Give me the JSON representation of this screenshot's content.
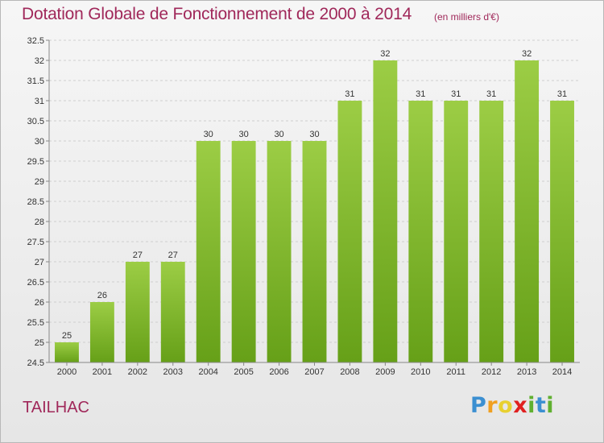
{
  "header": {
    "title": "Dotation Globale de Fonctionnement de 2000 à 2014",
    "unit": "(en milliers d'€)"
  },
  "footer": {
    "commune": "TAILHAC",
    "logo_letters": [
      "P",
      "r",
      "o",
      "x",
      "i",
      "t",
      "i"
    ]
  },
  "colors": {
    "title": "#a0285a",
    "bar_top": "#9ccd45",
    "bar_bottom": "#66a018",
    "logo": [
      "#3b8fd1",
      "#f0a020",
      "#e8d030",
      "#e02020",
      "#60b030",
      "#3b8fd1",
      "#60b030"
    ]
  },
  "chart_data": {
    "type": "bar",
    "categories": [
      "2000",
      "2001",
      "2002",
      "2003",
      "2004",
      "2005",
      "2006",
      "2007",
      "2008",
      "2009",
      "2010",
      "2011",
      "2012",
      "2013",
      "2014"
    ],
    "values": [
      25,
      26,
      27,
      27,
      30,
      30,
      30,
      30,
      31,
      32,
      31,
      31,
      31,
      32,
      31
    ],
    "yticks": [
      "24.5",
      "25",
      "25.5",
      "26",
      "26.5",
      "27",
      "27.5",
      "28",
      "28.5",
      "29",
      "29.5",
      "30",
      "30.5",
      "31",
      "31.5",
      "32",
      "32.5"
    ],
    "ylim": [
      24.5,
      32.5
    ],
    "grid": "horizontal dashed"
  }
}
